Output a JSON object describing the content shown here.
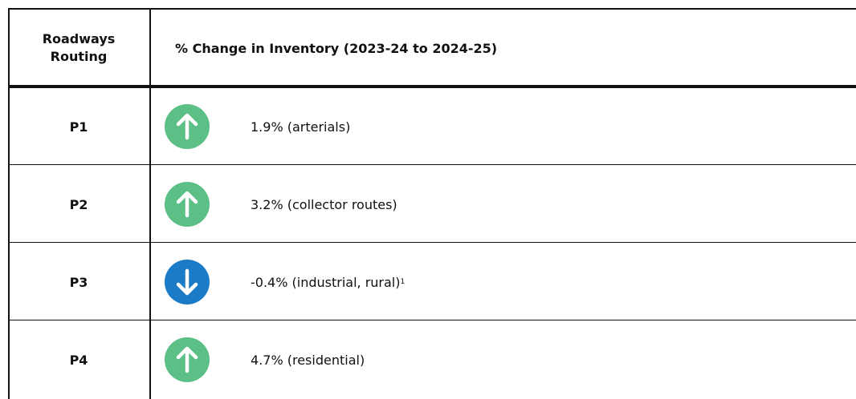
{
  "table": {
    "header": [
      "Roadways Routing",
      "% Change in Inventory (2023-24 to 2024-25)"
    ],
    "rows": [
      {
        "route": "P1",
        "change": "1.9% (arterials)"
      },
      {
        "route": "P2",
        "change": "3.2% (collector routes)"
      },
      {
        "route": "P3",
        "change": "-0.4% (industrial, rural)",
        "note": "1"
      },
      {
        "route": "P4",
        "change": "4.7% (residential)"
      }
    ]
  }
}
